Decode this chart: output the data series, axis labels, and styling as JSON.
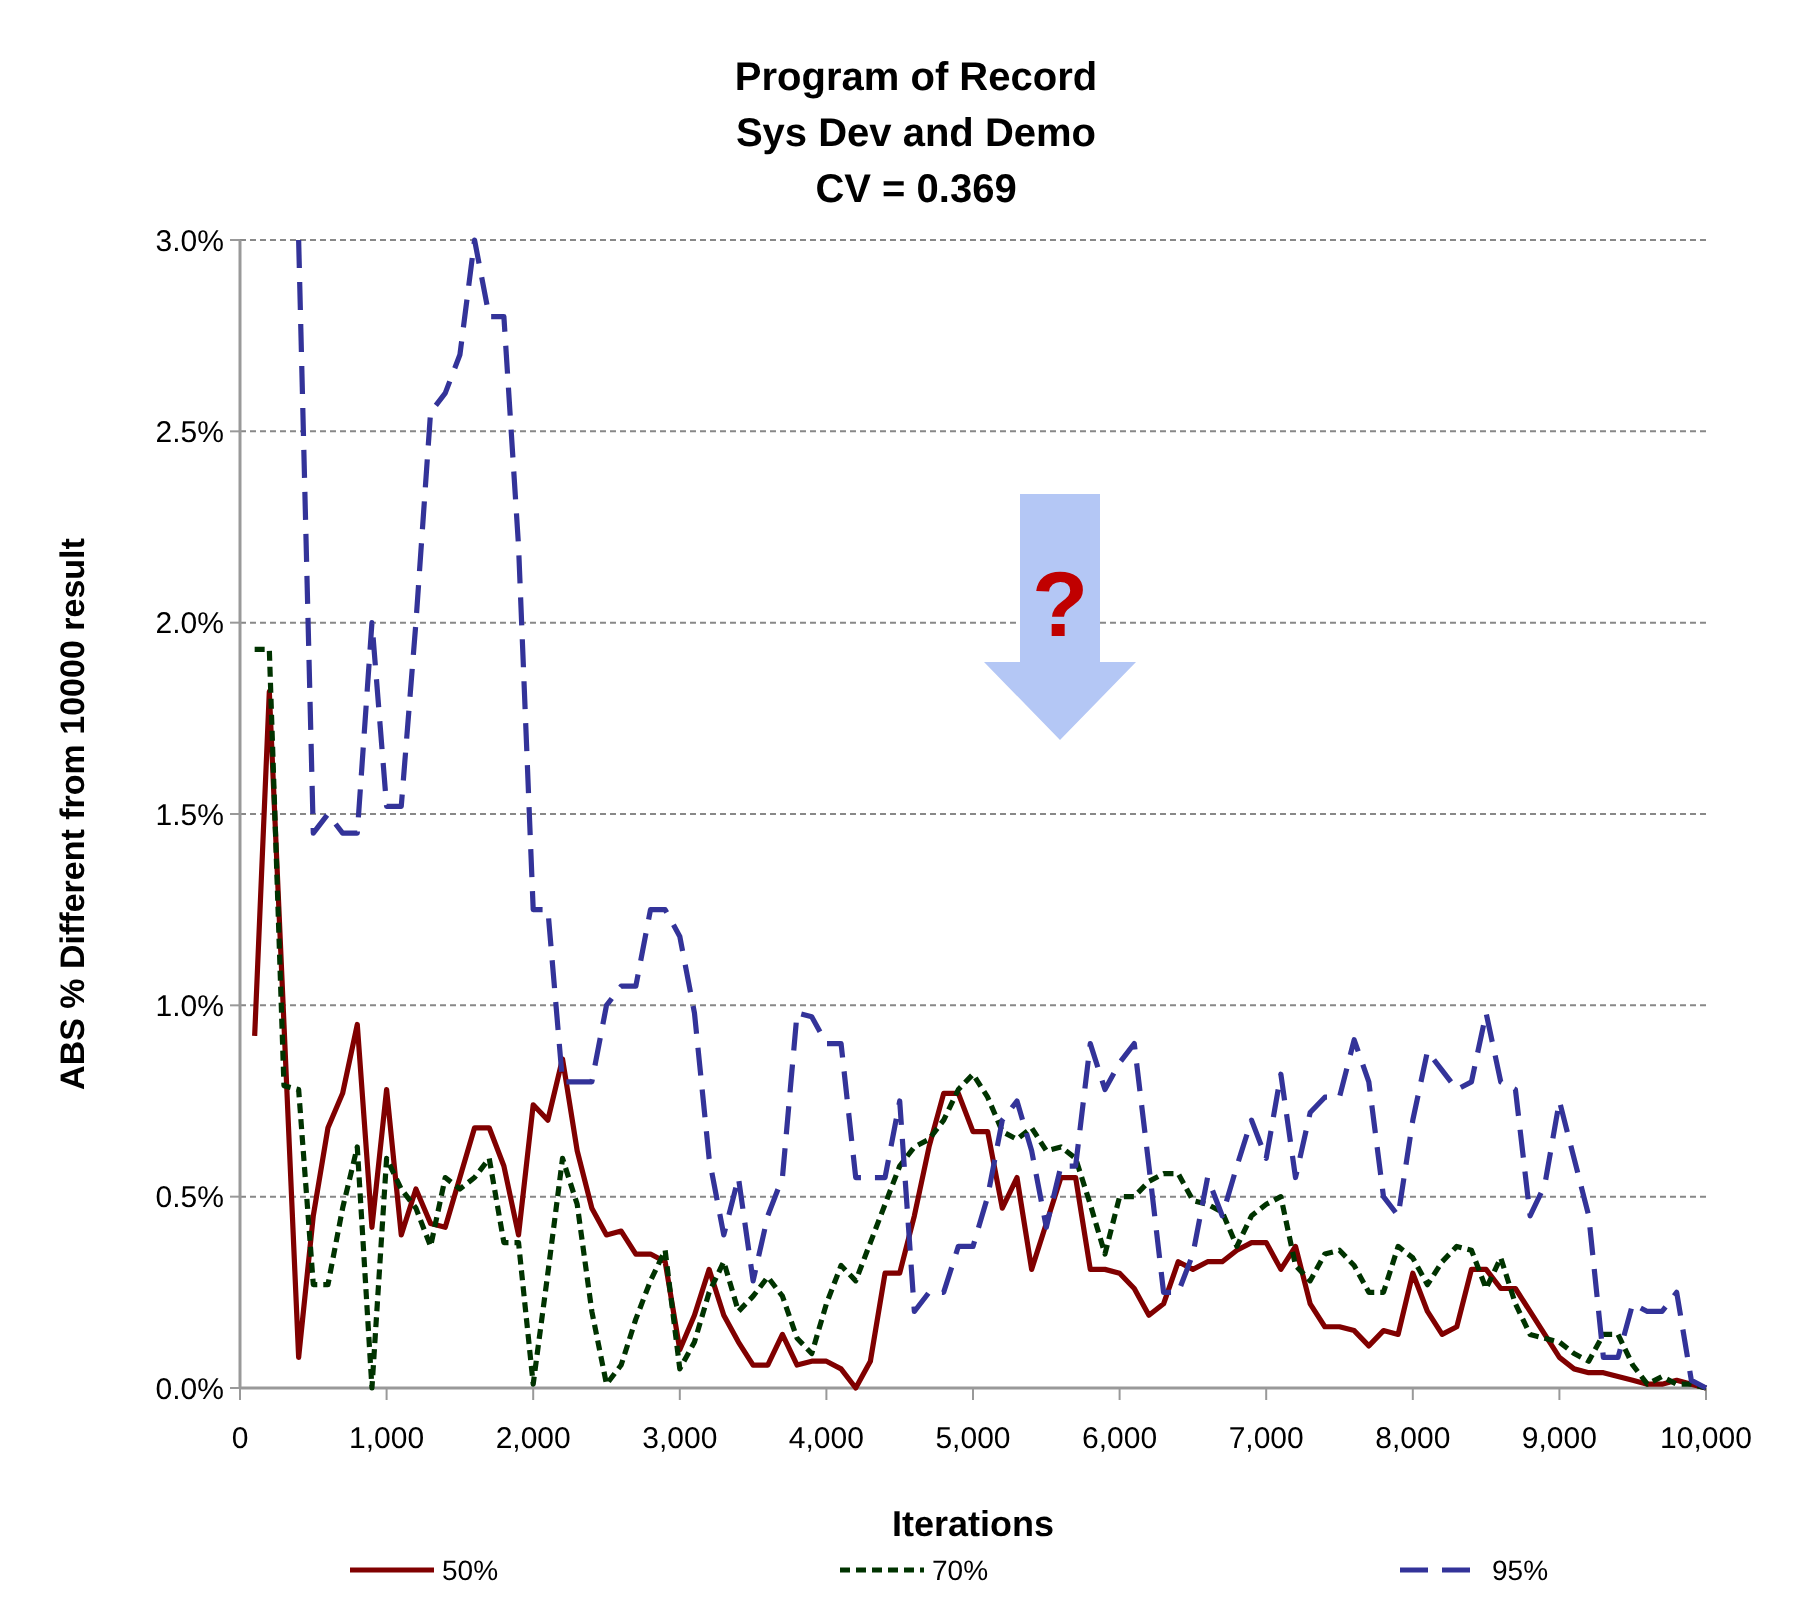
{
  "chart_data": {
    "type": "line",
    "title": "Program of Record\nSys Dev and Demo\nCV = 0.369",
    "xlabel": "Iterations",
    "ylabel": "ABS % Different from 10000 result",
    "x": [
      100,
      200,
      300,
      400,
      500,
      600,
      700,
      800,
      900,
      1000,
      1100,
      1200,
      1300,
      1400,
      1500,
      1600,
      1700,
      1800,
      1900,
      2000,
      2100,
      2200,
      2300,
      2400,
      2500,
      2600,
      2700,
      2800,
      2900,
      3000,
      3100,
      3200,
      3300,
      3400,
      3500,
      3600,
      3700,
      3800,
      3900,
      4000,
      4100,
      4200,
      4300,
      4400,
      4500,
      4600,
      4700,
      4800,
      4900,
      5000,
      5100,
      5200,
      5300,
      5400,
      5500,
      5600,
      5700,
      5800,
      5900,
      6000,
      6100,
      6200,
      6300,
      6400,
      6500,
      6600,
      6700,
      6800,
      6900,
      7000,
      7100,
      7200,
      7300,
      7400,
      7500,
      7600,
      7700,
      7800,
      7900,
      8000,
      8100,
      8200,
      8300,
      8400,
      8500,
      8600,
      8700,
      8800,
      8900,
      9000,
      9100,
      9200,
      9300,
      9400,
      9500,
      9600,
      9700,
      9800,
      9900,
      10000
    ],
    "series": [
      {
        "name": "50%",
        "color": "#800000",
        "line_style": "solid",
        "values": [
          0.92,
          1.82,
          0.95,
          0.08,
          0.45,
          0.68,
          0.77,
          0.95,
          0.42,
          0.78,
          0.4,
          0.52,
          0.43,
          0.42,
          0.55,
          0.68,
          0.68,
          0.58,
          0.4,
          0.74,
          0.7,
          0.86,
          0.62,
          0.47,
          0.4,
          0.41,
          0.35,
          0.35,
          0.33,
          0.1,
          0.19,
          0.31,
          0.19,
          0.12,
          0.06,
          0.06,
          0.14,
          0.06,
          0.07,
          0.07,
          0.05,
          0,
          0.07,
          0.3,
          0.3,
          0.45,
          0.63,
          0.77,
          0.77,
          0.67,
          0.67,
          0.47,
          0.55,
          0.31,
          0.43,
          0.55,
          0.55,
          0.31,
          0.31,
          0.3,
          0.26,
          0.19,
          0.22,
          0.33,
          0.31,
          0.33,
          0.33,
          0.36,
          0.38,
          0.38,
          0.31,
          0.37,
          0.22,
          0.16,
          0.16,
          0.15,
          0.11,
          0.15,
          0.14,
          0.3,
          0.2,
          0.14,
          0.16,
          0.31,
          0.31,
          0.26,
          0.26,
          0.2,
          0.14,
          0.08,
          0.05,
          0.04,
          0.04,
          0.03,
          0.02,
          0.01,
          0.01,
          0.02,
          0.01,
          0
        ]
      },
      {
        "name": "70%",
        "color": "#003300",
        "line_style": "dashed",
        "values": [
          1.93,
          1.93,
          0.79,
          0.78,
          0.27,
          0.27,
          0.47,
          0.63,
          0,
          0.6,
          0.52,
          0.47,
          0.37,
          0.55,
          0.52,
          0.55,
          0.6,
          0.38,
          0.38,
          0.01,
          0.3,
          0.6,
          0.48,
          0.2,
          0.01,
          0.06,
          0.18,
          0.28,
          0.36,
          0.05,
          0.12,
          0.25,
          0.33,
          0.2,
          0.24,
          0.29,
          0.24,
          0.13,
          0.09,
          0.22,
          0.32,
          0.28,
          0.38,
          0.48,
          0.58,
          0.63,
          0.65,
          0.7,
          0.78,
          0.82,
          0.76,
          0.67,
          0.65,
          0.68,
          0.62,
          0.63,
          0.6,
          0.48,
          0.35,
          0.5,
          0.5,
          0.54,
          0.56,
          0.56,
          0.49,
          0.48,
          0.46,
          0.37,
          0.45,
          0.48,
          0.5,
          0.32,
          0.28,
          0.35,
          0.36,
          0.32,
          0.25,
          0.25,
          0.37,
          0.34,
          0.27,
          0.33,
          0.37,
          0.36,
          0.26,
          0.34,
          0.22,
          0.14,
          0.13,
          0.12,
          0.09,
          0.07,
          0.14,
          0.14,
          0.06,
          0.01,
          0.03,
          0.01,
          0.01,
          0
        ]
      },
      {
        "name": "95%",
        "color": "#333399",
        "line_style": "dashed",
        "values": [
          null,
          null,
          null,
          3.0,
          1.45,
          1.5,
          1.45,
          1.45,
          2.0,
          1.52,
          1.52,
          2.0,
          2.55,
          2.6,
          2.7,
          3.0,
          2.8,
          2.8,
          2.2,
          1.25,
          1.25,
          0.8,
          0.8,
          0.8,
          1.0,
          1.05,
          1.05,
          1.25,
          1.25,
          1.18,
          0.98,
          0.6,
          0.4,
          0.55,
          0.28,
          0.45,
          0.55,
          0.98,
          0.97,
          0.9,
          0.9,
          0.55,
          0.55,
          0.55,
          0.75,
          0.2,
          0.25,
          0.25,
          0.37,
          0.37,
          0.5,
          0.7,
          0.75,
          0.62,
          0.42,
          0.58,
          0.58,
          0.9,
          0.78,
          0.85,
          0.9,
          0.58,
          0.25,
          0.25,
          0.35,
          0.55,
          0.45,
          0.58,
          0.7,
          0.6,
          0.82,
          0.55,
          0.72,
          0.76,
          0.76,
          0.91,
          0.8,
          0.5,
          0.45,
          0.7,
          0.88,
          0.83,
          0.78,
          0.8,
          0.98,
          0.8,
          0.78,
          0.45,
          0.53,
          0.75,
          0.6,
          0.45,
          0.08,
          0.08,
          0.22,
          0.2,
          0.2,
          0.25,
          0.02,
          0
        ]
      }
    ],
    "xlim": [
      0,
      10000
    ],
    "xticks": [
      0,
      {
        "value": 1000,
        "label": "1,000"
      },
      {
        "value": 2000,
        "label": "2,000"
      },
      {
        "value": 3000,
        "label": "3,000"
      },
      {
        "value": 4000,
        "label": "4,000"
      },
      {
        "value": 5000,
        "label": "5,000"
      },
      {
        "value": 6000,
        "label": "6,000"
      },
      {
        "value": 7000,
        "label": "7,000"
      },
      {
        "value": 8000,
        "label": "8,000"
      },
      {
        "value": 9000,
        "label": "9,000"
      },
      {
        "value": 10000,
        "label": "10,000"
      }
    ],
    "ylim": [
      0,
      3
    ],
    "yticks": [
      {
        "value": 0,
        "label": "0.0%"
      },
      {
        "value": 0.5,
        "label": "0.5%"
      },
      {
        "value": 1,
        "label": "1.0%"
      },
      {
        "value": 1.5,
        "label": "1.5%"
      },
      {
        "value": 2,
        "label": "2.0%"
      },
      {
        "value": 2.5,
        "label": "2.5%"
      },
      {
        "value": 3,
        "label": "3.0%"
      }
    ],
    "grid": "y",
    "legend": "bottom",
    "annotations": [
      "?"
    ]
  }
}
